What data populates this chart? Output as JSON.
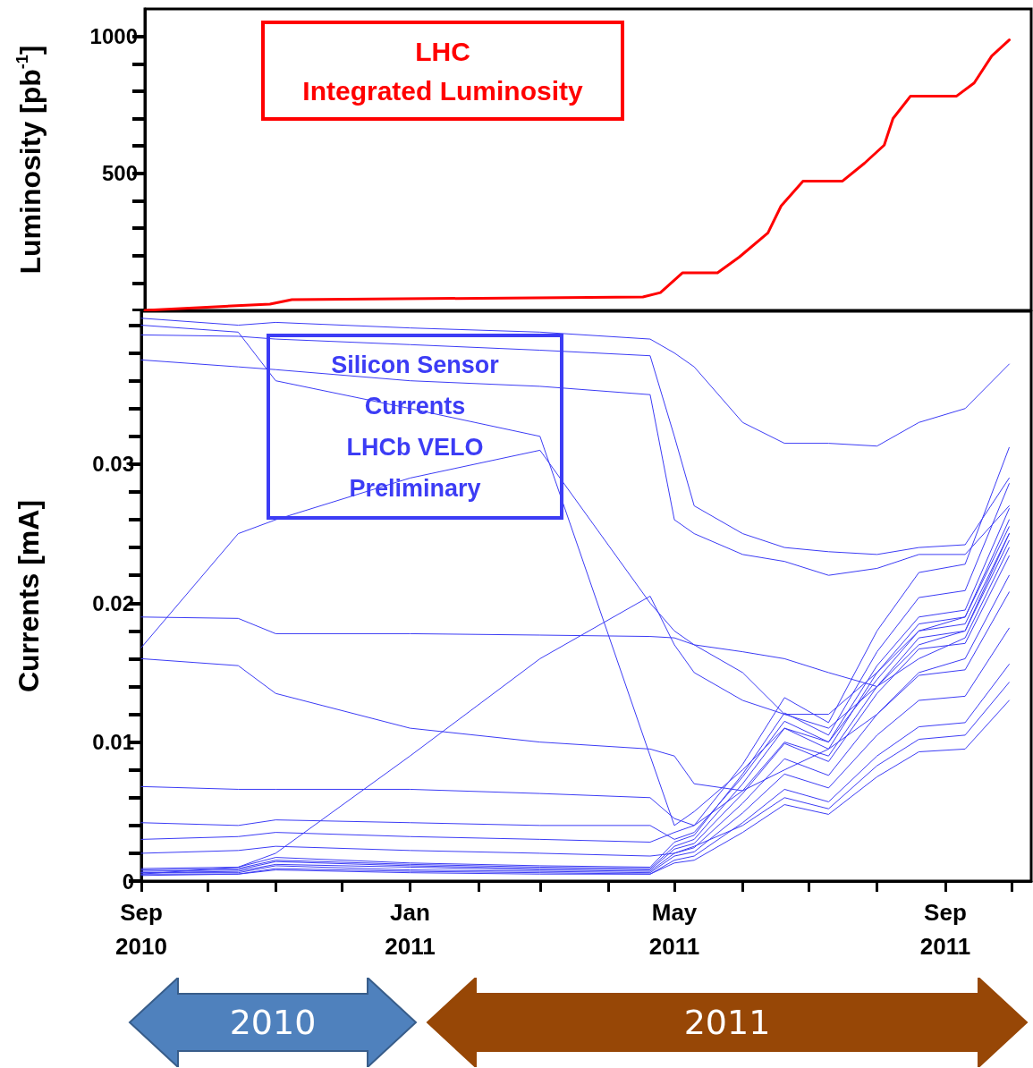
{
  "chart_data": [
    {
      "type": "line",
      "title": "LHC\nIntegrated Luminosity",
      "ylabel": "Luminosity [pb$^{-1}$]",
      "x": [
        "2010-09-01",
        "2010-10-28",
        "2010-11-07",
        "2011-04-16",
        "2011-04-24",
        "2011-05-04",
        "2011-05-20",
        "2011-05-30",
        "2011-06-12",
        "2011-06-18",
        "2011-06-28",
        "2011-07-16",
        "2011-07-26",
        "2011-08-04",
        "2011-08-08",
        "2011-08-16",
        "2011-09-06",
        "2011-09-14",
        "2011-09-22",
        "2011-09-30"
      ],
      "series": [
        {
          "color": "#ff0000",
          "values": [
            0,
            23,
            39,
            49,
            65,
            137,
            137,
            195,
            283,
            381,
            472,
            472,
            537,
            603,
            700,
            782,
            782,
            830,
            928,
            987
          ]
        }
      ],
      "xlim": [
        "2010-09-01",
        "2011-10-10"
      ],
      "ylim": [
        0,
        1100
      ],
      "yticks": [
        {
          "value": 0,
          "label": null
        },
        {
          "value": 100,
          "label": null
        },
        {
          "value": 200,
          "label": null
        },
        {
          "value": 300,
          "label": null
        },
        {
          "value": 400,
          "label": null
        },
        500,
        {
          "value": 600,
          "label": null
        },
        {
          "value": 700,
          "label": null
        },
        {
          "value": 800,
          "label": null
        },
        {
          "value": 900,
          "label": null
        },
        1000
      ],
      "tick_labels": "y",
      "grid": false,
      "marker": "none",
      "line_style": "solid"
    },
    {
      "type": "line",
      "title": "Silicon Sensor\nCurrents\nLHCb VELO\nPreliminary",
      "ylabel": "Currents [mA]",
      "annotations": [
        "2010",
        "2011"
      ],
      "x": [
        "2010-09-01",
        "2010-10-15",
        "2010-11-01",
        "2011-01-01",
        "2011-03-01",
        "2011-04-20",
        "2011-05-01",
        "2011-05-10",
        "2011-06-01",
        "2011-06-20",
        "2011-07-10",
        "2011-08-01",
        "2011-08-20",
        "2011-09-10",
        "2011-09-30"
      ],
      "series": [
        {
          "color": "#3c3cf5",
          "values": [
            0.0004,
            0.0005,
            0.0008,
            0.0006,
            0.0005,
            0.0005,
            0.0013,
            0.0015,
            0.0035,
            0.0055,
            0.0048,
            0.0075,
            0.0093,
            0.0095,
            0.013
          ]
        },
        {
          "color": "#3c3cf5",
          "values": [
            0.0005,
            0.0005,
            0.0009,
            0.0007,
            0.0006,
            0.0005,
            0.0015,
            0.0018,
            0.0042,
            0.0066,
            0.0057,
            0.009,
            0.0111,
            0.0114,
            0.0156
          ]
        },
        {
          "color": "#3c3cf5",
          "values": [
            0.0006,
            0.0006,
            0.0011,
            0.0008,
            0.0007,
            0.0006,
            0.0018,
            0.0021,
            0.0049,
            0.0077,
            0.0067,
            0.0105,
            0.013,
            0.0133,
            0.0182
          ]
        },
        {
          "color": "#3c3cf5",
          "values": [
            0.0006,
            0.0007,
            0.0012,
            0.001,
            0.0008,
            0.0007,
            0.002,
            0.0024,
            0.0056,
            0.0088,
            0.0076,
            0.012,
            0.0148,
            0.0152,
            0.0208
          ]
        },
        {
          "color": "#3c3cf5",
          "values": [
            0.0007,
            0.0008,
            0.0014,
            0.0011,
            0.0009,
            0.0008,
            0.0023,
            0.0027,
            0.0063,
            0.0099,
            0.0086,
            0.0135,
            0.0167,
            0.0171,
            0.0234
          ]
        },
        {
          "color": "#3c3cf5",
          "values": [
            0.0008,
            0.0009,
            0.0015,
            0.0012,
            0.001,
            0.0009,
            0.0025,
            0.003,
            0.007,
            0.011,
            0.0095,
            0.015,
            0.0185,
            0.019,
            0.026
          ]
        },
        {
          "color": "#3c3cf5",
          "values": [
            0.0009,
            0.001,
            0.0017,
            0.0013,
            0.0011,
            0.001,
            0.0028,
            0.0033,
            0.0077,
            0.0121,
            0.0105,
            0.0165,
            0.0204,
            0.0209,
            0.0286
          ]
        },
        {
          "color": "#3c3cf5",
          "values": [
            0.003,
            0.0032,
            0.0035,
            0.0032,
            0.003,
            0.0028,
            0.0035,
            0.004,
            0.0084,
            0.0132,
            0.0114,
            0.018,
            0.0222,
            0.0228,
            0.0312
          ]
        },
        {
          "color": "#3c3cf5",
          "values": [
            0.002,
            0.0022,
            0.0025,
            0.0022,
            0.002,
            0.0018,
            0.002,
            0.0025,
            0.004,
            0.006,
            0.0052,
            0.0083,
            0.0102,
            0.0105,
            0.0143
          ]
        },
        {
          "color": "#3c3cf5",
          "values": [
            0.0405,
            0.04,
            0.0402,
            0.0398,
            0.0395,
            0.039,
            0.038,
            0.037,
            0.033,
            0.0315,
            0.0315,
            0.0313,
            0.033,
            0.034,
            0.0372
          ]
        },
        {
          "color": "#3c3cf5",
          "values": [
            0.0393,
            0.0392,
            0.039,
            0.0386,
            0.0382,
            0.0378,
            0.032,
            0.027,
            0.025,
            0.024,
            0.0237,
            0.0235,
            0.024,
            0.0242,
            0.029
          ]
        },
        {
          "color": "#3c3cf5",
          "values": [
            0.0375,
            0.037,
            0.0368,
            0.036,
            0.0356,
            0.035,
            0.026,
            0.025,
            0.0235,
            0.023,
            0.022,
            0.0225,
            0.0235,
            0.0235,
            0.027
          ]
        },
        {
          "color": "#3c3cf5",
          "values": [
            0.0168,
            0.025,
            0.026,
            0.029,
            0.031,
            0.02,
            0.018,
            0.017,
            0.015,
            0.012,
            0.011,
            0.014,
            0.017,
            0.018,
            0.025
          ]
        },
        {
          "color": "#3c3cf5",
          "values": [
            0.019,
            0.0189,
            0.0178,
            0.0178,
            0.0177,
            0.0176,
            0.0175,
            0.017,
            0.0165,
            0.016,
            0.015,
            0.014,
            0.016,
            0.0175,
            0.024
          ]
        },
        {
          "color": "#3c3cf5",
          "values": [
            0.016,
            0.0155,
            0.0135,
            0.011,
            0.01,
            0.0095,
            0.009,
            0.007,
            0.0065,
            0.008,
            0.0095,
            0.012,
            0.015,
            0.016,
            0.022
          ]
        },
        {
          "color": "#3c3cf5",
          "values": [
            0.0005,
            0.001,
            0.002,
            0.009,
            0.016,
            0.0205,
            0.017,
            0.015,
            0.013,
            0.012,
            0.012,
            0.015,
            0.018,
            0.019,
            0.0255
          ]
        },
        {
          "color": "#3c3cf5",
          "values": [
            0.04,
            0.0395,
            0.036,
            0.034,
            0.032,
            0.009,
            0.004,
            0.005,
            0.008,
            0.011,
            0.01,
            0.0145,
            0.018,
            0.0185,
            0.025
          ]
        },
        {
          "color": "#3c3cf5",
          "values": [
            0.0068,
            0.0066,
            0.0066,
            0.0066,
            0.0063,
            0.006,
            0.0045,
            0.004,
            0.0065,
            0.01,
            0.009,
            0.014,
            0.0175,
            0.018,
            0.0245
          ]
        },
        {
          "color": "#3c3cf5",
          "values": [
            0.0042,
            0.004,
            0.0044,
            0.0042,
            0.004,
            0.004,
            0.003,
            0.0035,
            0.0075,
            0.0115,
            0.01,
            0.0155,
            0.019,
            0.0195,
            0.0268
          ]
        }
      ],
      "xlim": [
        "2010-09-01",
        "2011-10-10"
      ],
      "ylim": [
        0,
        0.041
      ],
      "xticks": [
        {
          "value": "2010-09-01",
          "label": "Sep\n2010"
        },
        {
          "value": "2010-10-01",
          "label": null
        },
        {
          "value": "2010-11-01",
          "label": null
        },
        {
          "value": "2010-12-01",
          "label": null
        },
        {
          "value": "2011-01-01",
          "label": "Jan\n2011"
        },
        {
          "value": "2011-02-01",
          "label": null
        },
        {
          "value": "2011-03-01",
          "label": null
        },
        {
          "value": "2011-04-01",
          "label": null
        },
        {
          "value": "2011-05-01",
          "label": "May\n2011"
        },
        {
          "value": "2011-06-01",
          "label": null
        },
        {
          "value": "2011-07-01",
          "label": null
        },
        {
          "value": "2011-08-01",
          "label": null
        },
        {
          "value": "2011-09-01",
          "label": "Sep\n2011"
        },
        {
          "value": "2011-10-01",
          "label": null
        }
      ],
      "yticks": [
        0,
        {
          "value": 0.002,
          "label": null
        },
        {
          "value": 0.004,
          "label": null
        },
        {
          "value": 0.006,
          "label": null
        },
        {
          "value": 0.008,
          "label": null
        },
        0.01,
        {
          "value": 0.012,
          "label": null
        },
        {
          "value": 0.014,
          "label": null
        },
        {
          "value": 0.016,
          "label": null
        },
        {
          "value": 0.018,
          "label": null
        },
        0.02,
        {
          "value": 0.022,
          "label": null
        },
        {
          "value": 0.024,
          "label": null
        },
        {
          "value": 0.026,
          "label": null
        },
        {
          "value": 0.028,
          "label": null
        },
        0.03,
        {
          "value": 0.032,
          "label": null
        },
        {
          "value": 0.034,
          "label": null
        },
        {
          "value": 0.036,
          "label": null
        },
        {
          "value": 0.038,
          "label": null
        },
        {
          "value": 0.04,
          "label": null
        }
      ],
      "grid": false,
      "marker": "none",
      "line_style": "solid"
    }
  ]
}
